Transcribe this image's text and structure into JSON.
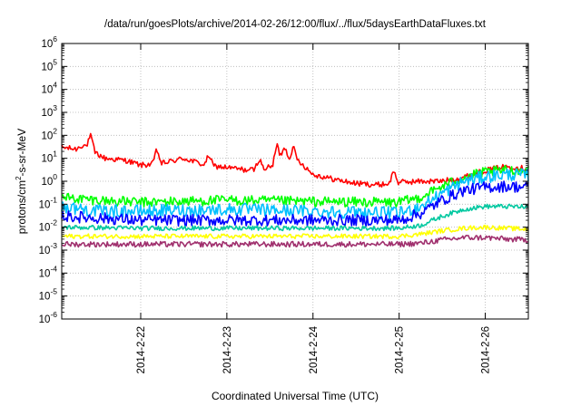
{
  "chart_data": {
    "type": "line",
    "title": "/data/run/goesPlots/archive/2014-02-26/12:00/flux/../flux/5daysEarthDataFluxes.txt",
    "xlabel": "Coordinated Universal Time (UTC)",
    "ylabel": {
      "pre": "protons/cm",
      "sup": "2",
      "post": "-s-sr-MeV"
    },
    "yscale": "log",
    "ylim": [
      1e-06,
      1000000.0
    ],
    "xlim": [
      "2014-02-21T02:00",
      "2014-02-26T12:00"
    ],
    "grid": true,
    "y_ticks": [
      {
        "value": 1e-06,
        "base": "10",
        "exp": "-6"
      },
      {
        "value": 1e-05,
        "base": "10",
        "exp": "-5"
      },
      {
        "value": 0.0001,
        "base": "10",
        "exp": "-4"
      },
      {
        "value": 0.001,
        "base": "10",
        "exp": "-3"
      },
      {
        "value": 0.01,
        "base": "10",
        "exp": "-2"
      },
      {
        "value": 0.1,
        "base": "10",
        "exp": "-1"
      },
      {
        "value": 1.0,
        "base": "10",
        "exp": "0"
      },
      {
        "value": 10.0,
        "base": "10",
        "exp": "1"
      },
      {
        "value": 100.0,
        "base": "10",
        "exp": "2"
      },
      {
        "value": 1000.0,
        "base": "10",
        "exp": "3"
      },
      {
        "value": 10000.0,
        "base": "10",
        "exp": "4"
      },
      {
        "value": 100000.0,
        "base": "10",
        "exp": "5"
      },
      {
        "value": 1000000.0,
        "base": "10",
        "exp": "6"
      }
    ],
    "x_ticks": [
      {
        "value": "2014-02-22T00:00",
        "label": "2014-2-22"
      },
      {
        "value": "2014-02-23T00:00",
        "label": "2014-2-23"
      },
      {
        "value": "2014-02-24T00:00",
        "label": "2014-2-24"
      },
      {
        "value": "2014-02-25T00:00",
        "label": "2014-2-25"
      },
      {
        "value": "2014-02-26T00:00",
        "label": "2014-2-26"
      }
    ],
    "series": [
      {
        "color": "#ff0000",
        "noise": 0.12,
        "x": [
          "2014-02-21T02:00",
          "2014-02-21T06:00",
          "2014-02-21T08:00",
          "2014-02-21T12:00",
          "2014-02-21T14:00",
          "2014-02-21T20:00",
          "2014-02-22T00:00",
          "2014-02-22T06:00",
          "2014-02-22T12:00",
          "2014-02-22T18:00",
          "2014-02-23T00:00",
          "2014-02-23T06:00",
          "2014-02-23T12:00",
          "2014-02-23T16:00",
          "2014-02-23T20:00",
          "2014-02-24T00:00",
          "2014-02-24T06:00",
          "2014-02-24T12:00",
          "2014-02-24T18:00",
          "2014-02-25T00:00",
          "2014-02-25T06:00",
          "2014-02-25T12:00",
          "2014-02-25T18:00",
          "2014-02-26T00:00",
          "2014-02-26T06:00",
          "2014-02-26T12:00"
        ],
        "y": [
          30,
          25,
          40,
          15,
          10,
          8,
          5,
          6,
          10,
          5,
          4,
          3,
          4,
          12,
          8,
          2,
          1.2,
          0.8,
          0.7,
          0.9,
          1.0,
          1.0,
          1.5,
          3.0,
          4.5,
          3.5
        ],
        "spikes": [
          {
            "x": "2014-02-21T10:00",
            "y": 100
          },
          {
            "x": "2014-02-22T04:30",
            "y": 25
          },
          {
            "x": "2014-02-22T19:00",
            "y": 15
          },
          {
            "x": "2014-02-23T09:00",
            "y": 10
          },
          {
            "x": "2014-02-23T14:00",
            "y": 40
          },
          {
            "x": "2014-02-23T16:00",
            "y": 35
          },
          {
            "x": "2014-02-23T18:30",
            "y": 30
          },
          {
            "x": "2014-02-24T22:30",
            "y": 3
          }
        ]
      },
      {
        "color": "#00ff00",
        "noise": 0.22,
        "x": [
          "2014-02-21T02:00",
          "2014-02-21T12:00",
          "2014-02-22T00:00",
          "2014-02-23T00:00",
          "2014-02-24T00:00",
          "2014-02-25T00:00",
          "2014-02-25T06:00",
          "2014-02-25T12:00",
          "2014-02-25T18:00",
          "2014-02-26T00:00",
          "2014-02-26T06:00",
          "2014-02-26T12:00"
        ],
        "y": [
          0.2,
          0.15,
          0.12,
          0.15,
          0.13,
          0.12,
          0.2,
          0.6,
          1.5,
          2.5,
          3.0,
          2.8
        ]
      },
      {
        "color": "#00c0ff",
        "noise": 0.28,
        "x": [
          "2014-02-21T02:00",
          "2014-02-21T12:00",
          "2014-02-22T00:00",
          "2014-02-23T00:00",
          "2014-02-24T00:00",
          "2014-02-25T00:00",
          "2014-02-25T06:00",
          "2014-02-25T12:00",
          "2014-02-25T18:00",
          "2014-02-26T00:00",
          "2014-02-26T06:00",
          "2014-02-26T12:00"
        ],
        "y": [
          0.08,
          0.05,
          0.05,
          0.06,
          0.05,
          0.04,
          0.08,
          0.3,
          1.0,
          1.6,
          2.0,
          1.8
        ]
      },
      {
        "color": "#0000ff",
        "noise": 0.25,
        "x": [
          "2014-02-21T02:00",
          "2014-02-21T12:00",
          "2014-02-22T00:00",
          "2014-02-23T00:00",
          "2014-02-24T00:00",
          "2014-02-25T00:00",
          "2014-02-25T06:00",
          "2014-02-25T12:00",
          "2014-02-25T18:00",
          "2014-02-26T00:00",
          "2014-02-26T06:00",
          "2014-02-26T12:00"
        ],
        "y": [
          0.03,
          0.025,
          0.02,
          0.02,
          0.02,
          0.02,
          0.04,
          0.15,
          0.4,
          0.55,
          0.6,
          0.55
        ]
      },
      {
        "color": "#00c8a0",
        "noise": 0.1,
        "x": [
          "2014-02-21T02:00",
          "2014-02-22T00:00",
          "2014-02-23T00:00",
          "2014-02-24T00:00",
          "2014-02-25T00:00",
          "2014-02-25T06:00",
          "2014-02-25T12:00",
          "2014-02-25T18:00",
          "2014-02-26T00:00",
          "2014-02-26T06:00",
          "2014-02-26T12:00"
        ],
        "y": [
          0.01,
          0.009,
          0.009,
          0.009,
          0.009,
          0.012,
          0.03,
          0.06,
          0.08,
          0.08,
          0.075
        ]
      },
      {
        "color": "#ffff00",
        "noise": 0.1,
        "x": [
          "2014-02-21T02:00",
          "2014-02-22T00:00",
          "2014-02-23T00:00",
          "2014-02-24T00:00",
          "2014-02-25T00:00",
          "2014-02-25T06:00",
          "2014-02-25T12:00",
          "2014-02-25T18:00",
          "2014-02-26T00:00",
          "2014-02-26T06:00",
          "2014-02-26T12:00"
        ],
        "y": [
          0.004,
          0.004,
          0.004,
          0.004,
          0.004,
          0.005,
          0.007,
          0.009,
          0.01,
          0.009,
          0.008
        ]
      },
      {
        "color": "#a0306e",
        "noise": 0.12,
        "x": [
          "2014-02-21T02:00",
          "2014-02-22T00:00",
          "2014-02-23T00:00",
          "2014-02-24T00:00",
          "2014-02-25T00:00",
          "2014-02-25T06:00",
          "2014-02-25T12:00",
          "2014-02-25T18:00",
          "2014-02-26T00:00",
          "2014-02-26T06:00",
          "2014-02-26T12:00"
        ],
        "y": [
          0.0018,
          0.0018,
          0.0018,
          0.0018,
          0.0018,
          0.002,
          0.0028,
          0.0035,
          0.0035,
          0.003,
          0.0028
        ]
      }
    ]
  }
}
